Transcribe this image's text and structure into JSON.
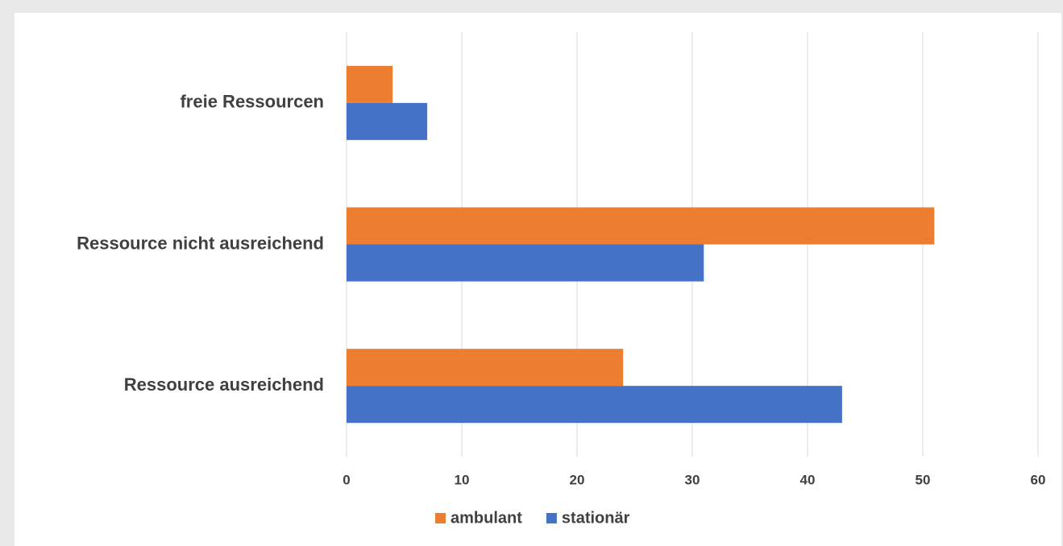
{
  "chart_data": {
    "type": "bar",
    "orientation": "horizontal",
    "categories": [
      "freie Ressourcen",
      "Ressource nicht ausreichend",
      "Ressource ausreichend"
    ],
    "series": [
      {
        "name": "ambulant",
        "color": "#ed7d31",
        "values": [
          4,
          51,
          24
        ]
      },
      {
        "name": "stationär",
        "color": "#4472c4",
        "values": [
          7,
          31,
          43
        ]
      }
    ],
    "xlim": [
      0,
      60
    ],
    "xticks": [
      0,
      10,
      20,
      30,
      40,
      50,
      60
    ],
    "grid": true,
    "legend": "bottom"
  }
}
